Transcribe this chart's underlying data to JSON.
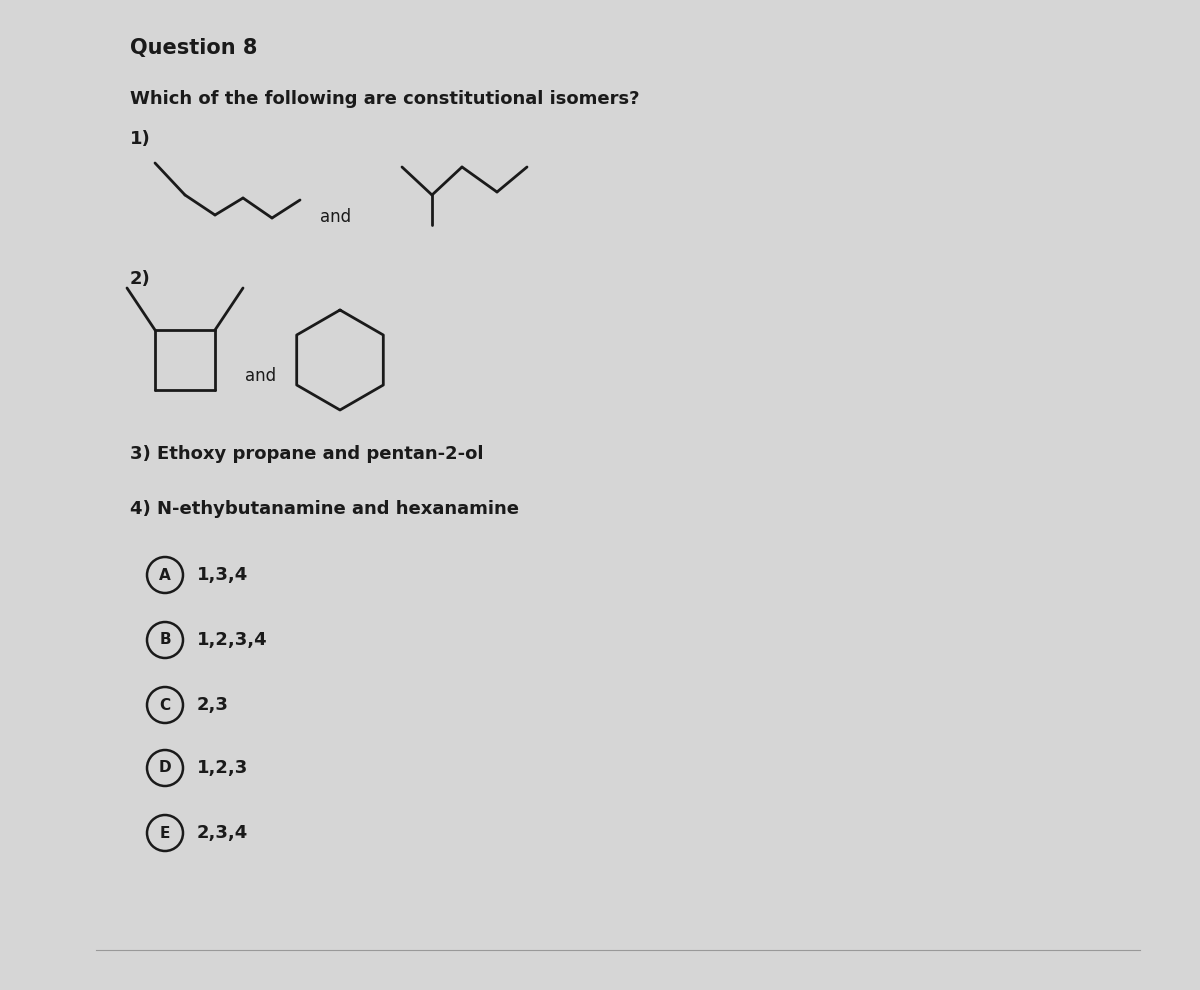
{
  "title": "Question 8",
  "question": "Which of the following are constitutional isomers?",
  "item1_label": "1)",
  "item2_label": "2)",
  "item3_text": "3) Ethoxy propane and pentan-2-ol",
  "item4_text": "4) N-ethybutanamine and hexanamine",
  "options": [
    {
      "letter": "A",
      "text": "1,3,4"
    },
    {
      "letter": "B",
      "text": "1,2,3,4"
    },
    {
      "letter": "C",
      "text": "2,3"
    },
    {
      "letter": "D",
      "text": "1,2,3"
    },
    {
      "letter": "E",
      "text": "2,3,4"
    }
  ],
  "bg_color": "#d6d6d6",
  "text_color": "#1a1a1a",
  "circle_color": "#1a1a1a",
  "mol_color": "#1a1a1a"
}
